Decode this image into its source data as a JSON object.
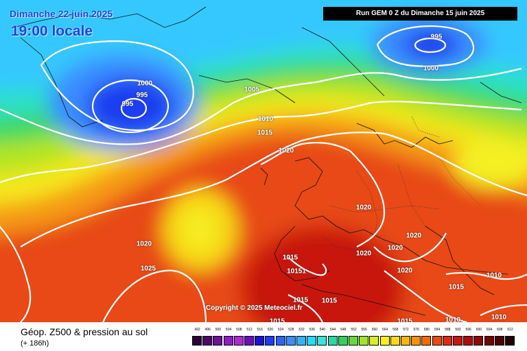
{
  "header": {
    "date_label": "Dimanche 22 juin 2025",
    "time_label": "19:00 locale",
    "run_label": "Run GEM 0 Z du Dimanche 15 juin 2025"
  },
  "copyright": "Copyright © 2025 Meteociel.fr",
  "footer": {
    "title": "Géop. Z500 & pression au sol",
    "subtitle": "(+ 186h)"
  },
  "legend": {
    "labels": [
      "492",
      "496",
      "500",
      "504",
      "508",
      "512",
      "516",
      "520",
      "524",
      "528",
      "532",
      "536",
      "540",
      "544",
      "548",
      "552",
      "556",
      "560",
      "564",
      "568",
      "572",
      "576",
      "580",
      "584",
      "588",
      "592",
      "596",
      "600",
      "604",
      "608",
      "612"
    ],
    "colors": [
      "#2a0438",
      "#4b0a66",
      "#6e1296",
      "#8f1ec2",
      "#b028d8",
      "#6a0dbd",
      "#1a14d0",
      "#1e3cf0",
      "#2a64ff",
      "#3a8cff",
      "#30b4ff",
      "#28d8ff",
      "#3ae4d8",
      "#28d8a0",
      "#30d060",
      "#64d83c",
      "#a0e42c",
      "#d8ec28",
      "#f4f020",
      "#f8d818",
      "#f8b410",
      "#f8900c",
      "#f46a0a",
      "#ea4a0c",
      "#dc2c10",
      "#c81810",
      "#b00c0c",
      "#900808",
      "#700606",
      "#4a0404",
      "#200202"
    ]
  },
  "isobars": [
    "1000",
    "995",
    "995",
    "995",
    "1000",
    "1005",
    "1010",
    "1015",
    "1020",
    "1020",
    "1020",
    "1020",
    "1020",
    "1020",
    "1025",
    "1015",
    "10151",
    "1015",
    "1015",
    "1015",
    "1020",
    "1010",
    "1015",
    "1010",
    "1010",
    "1015"
  ],
  "map_background": "#f0581c"
}
